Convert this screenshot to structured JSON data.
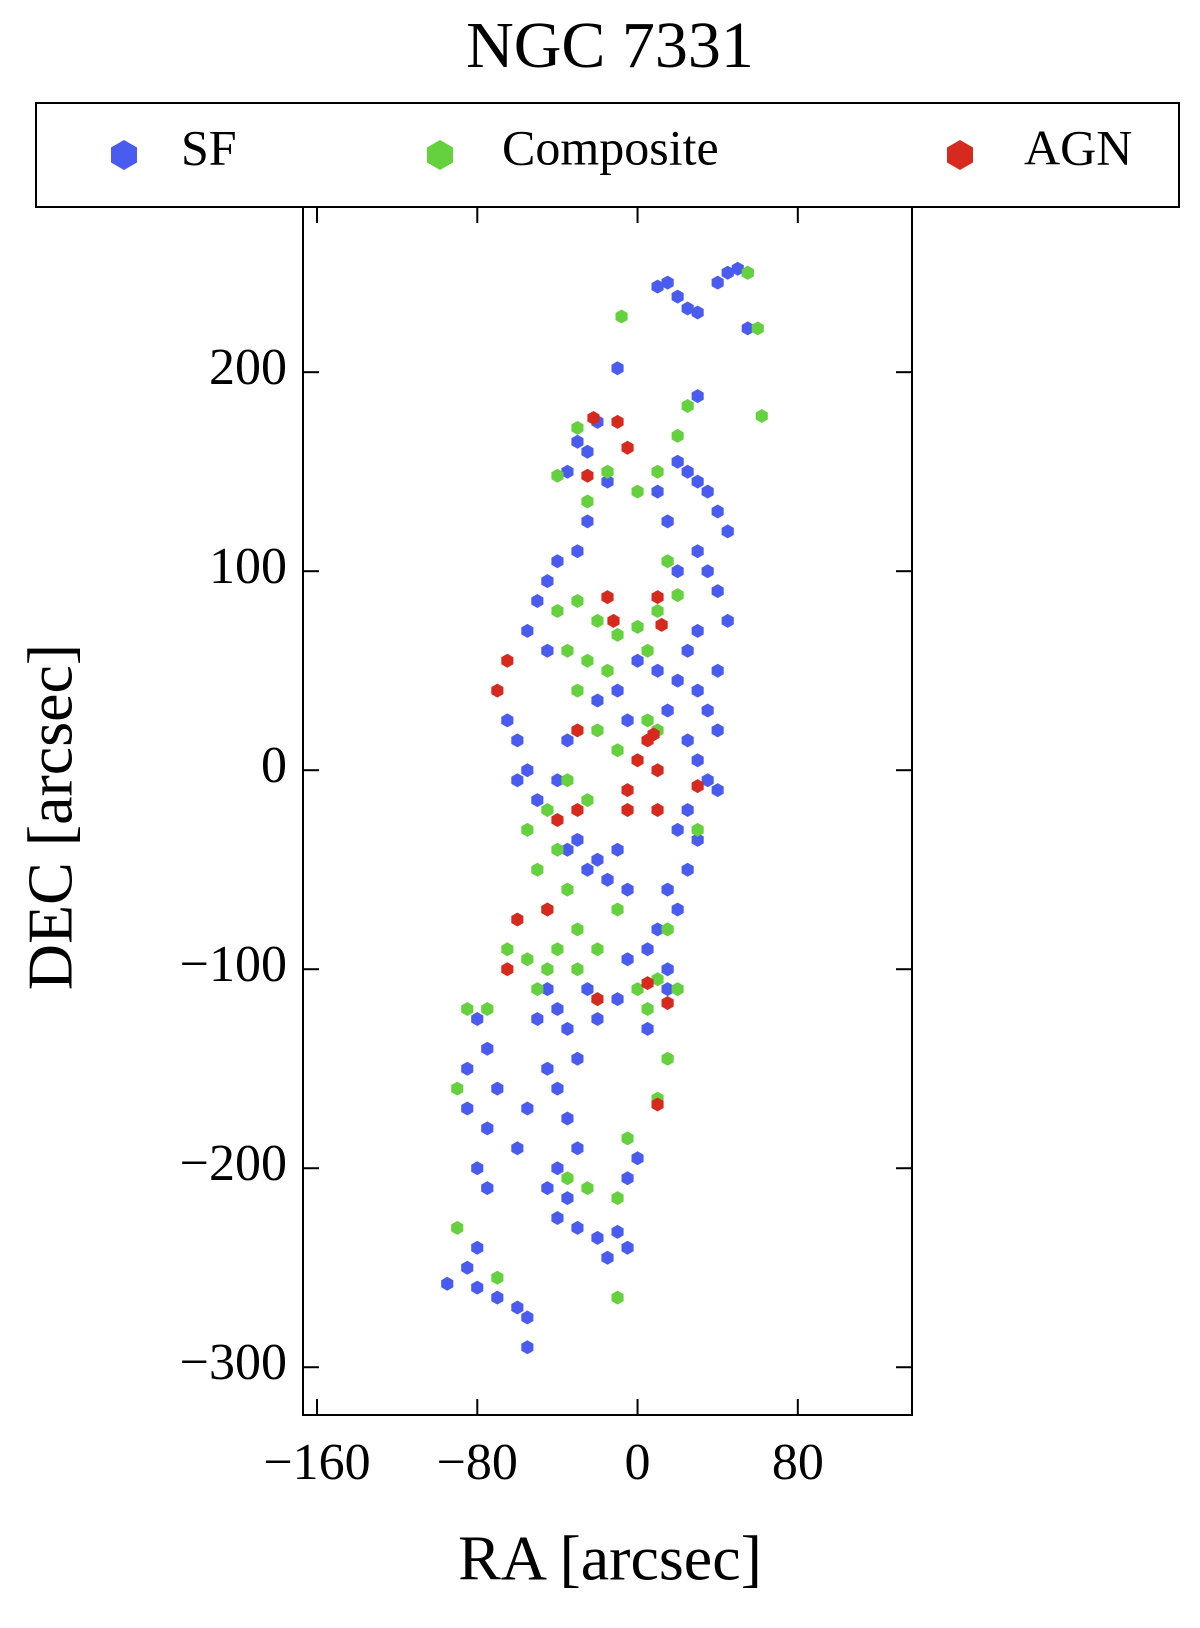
{
  "chart_data": {
    "type": "scatter",
    "title": "NGC 7331",
    "x_label": "RA [arcsec]",
    "y_label": "DEC [arcsec]",
    "xlim": [
      -167,
      137
    ],
    "ylim": [
      -324,
      283
    ],
    "xticks": [
      {
        "value": -160,
        "label": "−160"
      },
      {
        "value": -80,
        "label": "−80"
      },
      0,
      80
    ],
    "yticks": [
      {
        "value": -300,
        "label": "−300"
      },
      {
        "value": -200,
        "label": "−200"
      },
      {
        "value": -100,
        "label": "−100"
      },
      0,
      100,
      200
    ],
    "legend": "upper center",
    "series": [
      {
        "name": "SF",
        "color": "#4a5cf0",
        "x": [
          45,
          50,
          55,
          40,
          20,
          25,
          30,
          15,
          10,
          55,
          -10,
          30,
          -20,
          -30,
          -25,
          -35,
          -15,
          20,
          25,
          30,
          35,
          40,
          45,
          10,
          15,
          -25,
          -30,
          -40,
          -45,
          30,
          35,
          40,
          45,
          20,
          -50,
          -55,
          -45,
          0,
          10,
          20,
          30,
          35,
          40,
          15,
          -10,
          -20,
          -5,
          25,
          30,
          35,
          40,
          25,
          20,
          30,
          25,
          15,
          20,
          10,
          5,
          -5,
          15,
          -10,
          -20,
          -25,
          -15,
          -5,
          -30,
          -35,
          -55,
          -60,
          -65,
          -60,
          -50,
          -40,
          -35,
          -45,
          -40,
          -50,
          -35,
          -30,
          -45,
          -40,
          -55,
          -35,
          -60,
          -30,
          -40,
          -45,
          -35,
          -40,
          -30,
          -20,
          -15,
          -10,
          -5,
          -75,
          -80,
          -75,
          -80,
          -85,
          -80,
          -70,
          -60,
          -55,
          -55,
          -95,
          -5,
          0,
          -25,
          -20,
          -10,
          5,
          15,
          -80,
          -75,
          -70,
          -85,
          -85,
          25,
          30,
          40
        ],
        "y": [
          250,
          252,
          250,
          245,
          238,
          232,
          230,
          245,
          243,
          222,
          202,
          188,
          175,
          165,
          160,
          150,
          145,
          155,
          150,
          145,
          140,
          130,
          120,
          140,
          125,
          125,
          110,
          105,
          95,
          110,
          100,
          90,
          75,
          100,
          85,
          70,
          60,
          55,
          50,
          45,
          40,
          30,
          20,
          30,
          40,
          35,
          25,
          15,
          5,
          -5,
          -10,
          -20,
          -30,
          -35,
          -50,
          -60,
          -70,
          -80,
          -90,
          -95,
          -100,
          -40,
          -45,
          -50,
          -55,
          -60,
          -35,
          -40,
          0,
          15,
          25,
          -5,
          -15,
          -5,
          15,
          -110,
          -120,
          -125,
          -130,
          -145,
          -150,
          -160,
          -170,
          -175,
          -190,
          -190,
          -200,
          -210,
          -215,
          -225,
          -230,
          -235,
          -245,
          -232,
          -240,
          -180,
          -200,
          -210,
          -240,
          -250,
          -260,
          -265,
          -270,
          -275,
          -290,
          -258,
          -205,
          -195,
          -110,
          -125,
          -115,
          -130,
          -110,
          -125,
          -140,
          -160,
          -150,
          -170,
          60,
          70,
          50
        ]
      },
      {
        "name": "Composite",
        "color": "#66d13f",
        "x": [
          55,
          60,
          62,
          -8,
          25,
          -30,
          20,
          10,
          -15,
          0,
          -25,
          -40,
          15,
          20,
          -30,
          -40,
          -20,
          -10,
          0,
          10,
          -35,
          -25,
          -15,
          5,
          -30,
          -20,
          -10,
          5,
          10,
          -35,
          -25,
          -45,
          -55,
          -40,
          -50,
          -35,
          -45,
          -30,
          -40,
          -55,
          -45,
          -20,
          -10,
          -30,
          -50,
          -20,
          0,
          5,
          10,
          20,
          -65,
          -75,
          -85,
          -90,
          -90,
          -70,
          -10,
          -35,
          -25,
          -10,
          -5,
          10,
          15,
          15,
          30
        ],
        "y": [
          250,
          222,
          178,
          228,
          183,
          172,
          168,
          150,
          150,
          140,
          135,
          148,
          105,
          88,
          85,
          80,
          75,
          68,
          72,
          80,
          60,
          55,
          50,
          60,
          40,
          20,
          10,
          25,
          20,
          -5,
          -15,
          -20,
          -30,
          -40,
          -50,
          -60,
          -70,
          -80,
          -90,
          -95,
          -100,
          -90,
          -70,
          -100,
          -110,
          -115,
          -110,
          -120,
          -105,
          -110,
          -90,
          -120,
          -120,
          -160,
          -230,
          -255,
          -265,
          -205,
          -210,
          -215,
          -185,
          -165,
          -145,
          -80,
          -30
        ]
      },
      {
        "name": "AGN",
        "color": "#d62a1e",
        "x": [
          -22,
          -10,
          -5,
          -25,
          -15,
          10,
          -12,
          12,
          -65,
          -70,
          -30,
          5,
          8,
          0,
          10,
          -5,
          30,
          -40,
          -30,
          -5,
          10,
          -45,
          -60,
          -65,
          5,
          15,
          10,
          -20
        ],
        "y": [
          177,
          175,
          162,
          148,
          87,
          87,
          75,
          73,
          55,
          40,
          20,
          15,
          18,
          5,
          0,
          -10,
          -8,
          -25,
          -20,
          -20,
          -20,
          -70,
          -75,
          -100,
          -107,
          -117,
          -168,
          -115
        ]
      }
    ]
  }
}
